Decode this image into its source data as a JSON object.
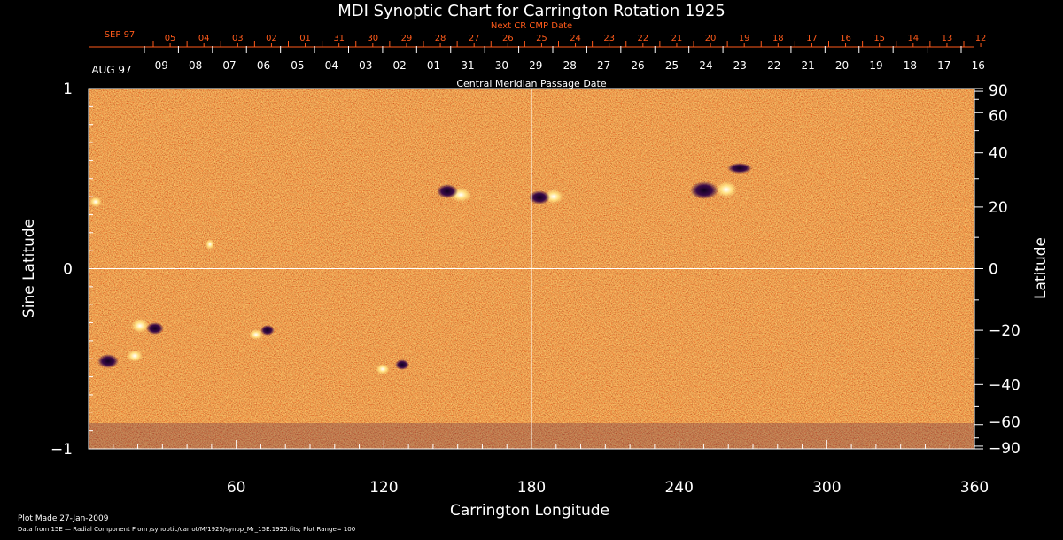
{
  "chart_data": {
    "type": "heatmap",
    "title": "MDI Synoptic Chart for Carrington Rotation 1925",
    "xlabel": "Carrington Longitude",
    "ylabel_left": "Sine Latitude",
    "ylabel_right": "Latitude",
    "xlim": [
      0,
      360
    ],
    "ylim": [
      -1,
      1
    ],
    "x_ticks": [
      "60",
      "120",
      "180",
      "240",
      "300",
      "360"
    ],
    "x_tick_values": [
      60,
      120,
      180,
      240,
      300,
      360
    ],
    "y_left_ticks": [
      "1",
      "0",
      "−1"
    ],
    "y_left_tick_values": [
      1,
      0,
      -1
    ],
    "y_right_ticks": [
      "90",
      "60",
      "40",
      "20",
      "0",
      "−20",
      "−40",
      "−60",
      "−90"
    ],
    "y_right_tick_values": [
      90,
      60,
      40,
      20,
      0,
      -20,
      -40,
      -60,
      -90
    ],
    "grid_lines": {
      "longitude": 180,
      "sine_latitude": 0
    },
    "top_axis_red": {
      "label": "Next CR CMP Date",
      "month": "SEP 97",
      "ticks": [
        "05",
        "04",
        "03",
        "02",
        "01",
        "31",
        "30",
        "29",
        "28",
        "27",
        "26",
        "25",
        "24",
        "23",
        "22",
        "21",
        "20",
        "19",
        "18",
        "17",
        "16",
        "15",
        "14",
        "13",
        "12"
      ]
    },
    "top_axis_white": {
      "label": "Central Meridian Passage Date",
      "month": "AUG 97",
      "ticks": [
        "09",
        "08",
        "07",
        "06",
        "05",
        "04",
        "03",
        "02",
        "01",
        "31",
        "30",
        "29",
        "28",
        "27",
        "26",
        "25",
        "24",
        "23",
        "22",
        "21",
        "20",
        "19",
        "18",
        "17",
        "16"
      ]
    },
    "colormap": [
      "#100020",
      "#3a0a48",
      "#b01810",
      "#e85008",
      "#f58a30",
      "#ffe080",
      "#ffffff"
    ],
    "background_color": "#000000",
    "field_base_color": "#e85008"
  },
  "footer": {
    "plot_made": "Plot Made 27-Jan-2009",
    "data_source": "Data from 15E — Radial Component From /synoptic/carrot/M/1925/synop_Mr_15E.1925.fits; Plot Range= 100"
  }
}
